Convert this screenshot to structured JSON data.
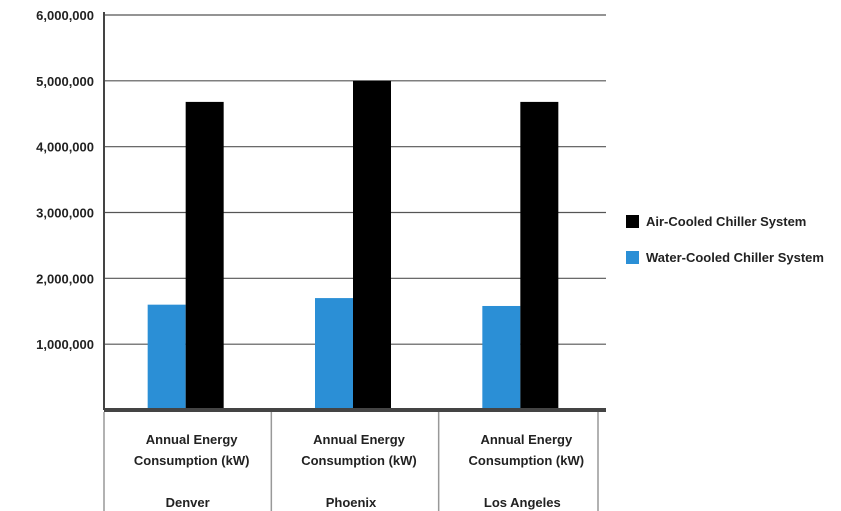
{
  "chart_data": {
    "type": "bar",
    "categories": [
      "Denver",
      "Phoenix",
      "Los Angeles"
    ],
    "category_sublabel": [
      "Annual Energy",
      "Consumption (kW)"
    ],
    "series": [
      {
        "name": "Water-Cooled Chiller System",
        "values": [
          1600000,
          1700000,
          1580000
        ],
        "color": "#2b8fd6"
      },
      {
        "name": "Air-Cooled Chiller System",
        "values": [
          4680000,
          5000000,
          4680000
        ],
        "color": "#000000"
      }
    ],
    "yticks": [
      "1,000,000",
      "2,000,000",
      "3,000,000",
      "4,000,000",
      "5,000,000",
      "6,000,000"
    ],
    "ylim": [
      0,
      6000000
    ],
    "grid": true,
    "legend_position": "right",
    "legend_order": [
      1,
      0
    ]
  }
}
